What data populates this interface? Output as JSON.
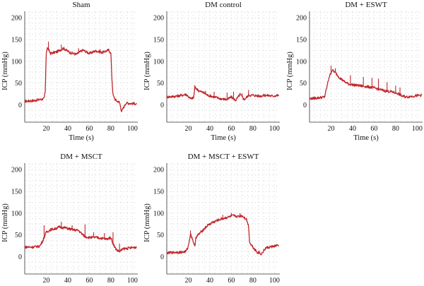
{
  "figure": {
    "series_color": "#c1272d",
    "grid_color": "#b9b9b9"
  },
  "chart_data": [
    {
      "type": "line",
      "title": "Sham",
      "xlabel": "Time (s)",
      "ylabel": "ICP (mmHg)",
      "xlim": [
        0,
        105
      ],
      "ylim": [
        -40,
        215
      ],
      "xticks": [
        20,
        40,
        60,
        80,
        100
      ],
      "yticks": [
        0,
        50,
        100,
        150,
        200
      ],
      "grid": true,
      "x": [
        0,
        10,
        18,
        19,
        20,
        21,
        24,
        30,
        36,
        42,
        48,
        54,
        60,
        66,
        72,
        78,
        80,
        81,
        82,
        84,
        86,
        88,
        90,
        94,
        100,
        104
      ],
      "y": [
        8,
        10,
        14,
        30,
        120,
        132,
        118,
        122,
        130,
        120,
        116,
        126,
        118,
        124,
        120,
        126,
        118,
        60,
        22,
        12,
        8,
        6,
        -15,
        4,
        3,
        2
      ],
      "spikes": [
        [
          22,
          145
        ],
        [
          34,
          138
        ],
        [
          50,
          130
        ],
        [
          70,
          128
        ]
      ]
    },
    {
      "type": "line",
      "title": "DM control",
      "xlabel": "Time (s)",
      "ylabel": "ICP (mmHg)",
      "xlim": [
        0,
        105
      ],
      "ylim": [
        -40,
        215
      ],
      "xticks": [
        20,
        40,
        60,
        80,
        100
      ],
      "yticks": [
        0,
        50,
        100,
        150,
        200
      ],
      "grid": true,
      "x": [
        0,
        10,
        18,
        22,
        25,
        26,
        30,
        34,
        38,
        44,
        50,
        56,
        60,
        64,
        68,
        72,
        76,
        80,
        86,
        92,
        98,
        104
      ],
      "y": [
        18,
        20,
        24,
        14,
        16,
        40,
        32,
        28,
        22,
        18,
        14,
        12,
        18,
        10,
        24,
        12,
        22,
        22,
        20,
        22,
        20,
        22
      ],
      "spikes": [
        [
          26,
          45
        ],
        [
          36,
          32
        ],
        [
          44,
          30
        ],
        [
          56,
          28
        ],
        [
          62,
          30
        ],
        [
          70,
          26
        ],
        [
          76,
          34
        ]
      ]
    },
    {
      "type": "line",
      "title": "DM + ESWT",
      "xlabel": "Time (s)",
      "ylabel": "ICP (mmHg)",
      "xlim": [
        0,
        105
      ],
      "ylim": [
        -40,
        215
      ],
      "xticks": [
        20,
        40,
        60,
        80,
        100
      ],
      "yticks": [
        0,
        50,
        100,
        150,
        200
      ],
      "grid": true,
      "x": [
        0,
        8,
        14,
        16,
        18,
        21,
        24,
        28,
        32,
        36,
        40,
        46,
        52,
        58,
        64,
        70,
        76,
        82,
        86,
        90,
        96,
        104
      ],
      "y": [
        14,
        16,
        18,
        40,
        62,
        80,
        74,
        62,
        54,
        48,
        46,
        44,
        42,
        40,
        36,
        32,
        30,
        26,
        20,
        18,
        20,
        22
      ],
      "spikes": [
        [
          20,
          90
        ],
        [
          24,
          84
        ],
        [
          38,
          68
        ],
        [
          50,
          64
        ],
        [
          58,
          62
        ],
        [
          64,
          60
        ],
        [
          72,
          52
        ],
        [
          80,
          44
        ],
        [
          84,
          40
        ]
      ]
    },
    {
      "type": "line",
      "title": "DM + MSCT",
      "xlabel": "Time (s)",
      "ylabel": "ICP (mmHg)",
      "xlim": [
        0,
        105
      ],
      "ylim": [
        -40,
        215
      ],
      "xticks": [
        20,
        40,
        60,
        80,
        100
      ],
      "yticks": [
        0,
        50,
        100,
        150,
        200
      ],
      "grid": true,
      "x": [
        0,
        8,
        14,
        17,
        20,
        24,
        28,
        32,
        38,
        44,
        50,
        54,
        56,
        60,
        66,
        72,
        76,
        80,
        82,
        84,
        86,
        88,
        92,
        98,
        104
      ],
      "y": [
        22,
        22,
        24,
        38,
        56,
        62,
        64,
        68,
        66,
        62,
        60,
        50,
        46,
        44,
        44,
        42,
        40,
        44,
        30,
        20,
        14,
        12,
        18,
        20,
        22
      ],
      "spikes": [
        [
          18,
          72
        ],
        [
          34,
          80
        ],
        [
          44,
          72
        ],
        [
          56,
          74
        ],
        [
          64,
          56
        ],
        [
          74,
          54
        ],
        [
          82,
          56
        ],
        [
          88,
          30
        ]
      ]
    },
    {
      "type": "line",
      "title": "DM + MSCT + ESWT",
      "xlabel": "Time (s)",
      "ylabel": "ICP (mmHg)",
      "xlim": [
        0,
        105
      ],
      "ylim": [
        -40,
        215
      ],
      "xticks": [
        20,
        40,
        60,
        80,
        100
      ],
      "yticks": [
        0,
        50,
        100,
        150,
        200
      ],
      "grid": true,
      "x": [
        0,
        8,
        14,
        18,
        20,
        22,
        24,
        26,
        27,
        30,
        34,
        38,
        44,
        50,
        56,
        62,
        66,
        70,
        74,
        76,
        77,
        80,
        84,
        88,
        92,
        96,
        100,
        104
      ],
      "y": [
        8,
        10,
        10,
        12,
        24,
        52,
        40,
        22,
        44,
        52,
        62,
        72,
        80,
        86,
        90,
        94,
        92,
        94,
        86,
        70,
        32,
        22,
        10,
        6,
        20,
        22,
        24,
        26
      ],
      "spikes": [
        [
          22,
          60
        ],
        [
          42,
          82
        ],
        [
          52,
          96
        ],
        [
          60,
          100
        ],
        [
          68,
          100
        ],
        [
          86,
          14
        ]
      ]
    }
  ]
}
